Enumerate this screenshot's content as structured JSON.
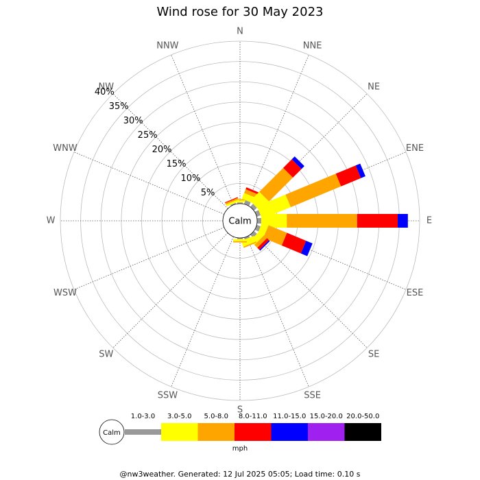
{
  "chart_data": {
    "type": "wind-rose",
    "title": "Wind rose for 30 May 2023",
    "directions": [
      "N",
      "NNE",
      "NE",
      "ENE",
      "E",
      "ESE",
      "SE",
      "SSE",
      "S",
      "SSW",
      "SW",
      "WSW",
      "W",
      "WNW",
      "NW",
      "NNW"
    ],
    "calm_label": "Calm",
    "unit_label": "mph",
    "footer": "@nw3weather. Generated: 12 Jul 2025 05:05; Load time: 0.10 s",
    "rlim": [
      0,
      40
    ],
    "rticks": [
      {
        "value": 5,
        "label": "5%"
      },
      {
        "value": 10,
        "label": "10%"
      },
      {
        "value": 15,
        "label": "15%"
      },
      {
        "value": 20,
        "label": "20%"
      },
      {
        "value": 25,
        "label": "25%"
      },
      {
        "value": 30,
        "label": "30%"
      },
      {
        "value": 35,
        "label": "35%"
      },
      {
        "value": 40,
        "label": "40%"
      }
    ],
    "series": [
      {
        "name": "1.0-3.0",
        "color": "#999999",
        "values": [
          0.3,
          1,
          1,
          1,
          1,
          1,
          1,
          0.5,
          0.3,
          0,
          0,
          0,
          0,
          0,
          0,
          0.3
        ]
      },
      {
        "name": "3.0-5.0",
        "color": "#ffff00",
        "values": [
          0.5,
          1.5,
          3.2,
          7.6,
          6.3,
          1.7,
          1.5,
          1.5,
          0.5,
          0,
          0,
          0,
          0,
          0,
          0,
          0.5
        ]
      },
      {
        "name": "5.0-8.0",
        "color": "#ffa500",
        "values": [
          0.3,
          1,
          8.3,
          13.4,
          17.3,
          4.9,
          1,
          0.3,
          0.3,
          0,
          0,
          0,
          0,
          0,
          0,
          0.4
        ]
      },
      {
        "name": "8.0-11.0",
        "color": "#ff0000",
        "values": [
          0,
          0.5,
          3,
          5.3,
          10,
          5.1,
          0.7,
          0,
          0,
          0,
          0,
          0,
          0,
          0,
          0,
          0.2
        ]
      },
      {
        "name": "11.0-15.0",
        "color": "#0000ff",
        "values": [
          0,
          0,
          1,
          1.2,
          2.5,
          1.7,
          0.3,
          0,
          0,
          0,
          0,
          0,
          0,
          0,
          0,
          0
        ]
      },
      {
        "name": "15.0-20.0",
        "color": "#a020f0",
        "values": [
          0,
          0,
          0,
          0,
          0,
          0,
          0,
          0,
          0,
          0,
          0,
          0,
          0,
          0,
          0,
          0
        ]
      },
      {
        "name": "20.0-50.0",
        "color": "#000000",
        "values": [
          0,
          0,
          0,
          0,
          0,
          0,
          0,
          0,
          0,
          0,
          0,
          0,
          0,
          0,
          0,
          0
        ]
      }
    ]
  }
}
